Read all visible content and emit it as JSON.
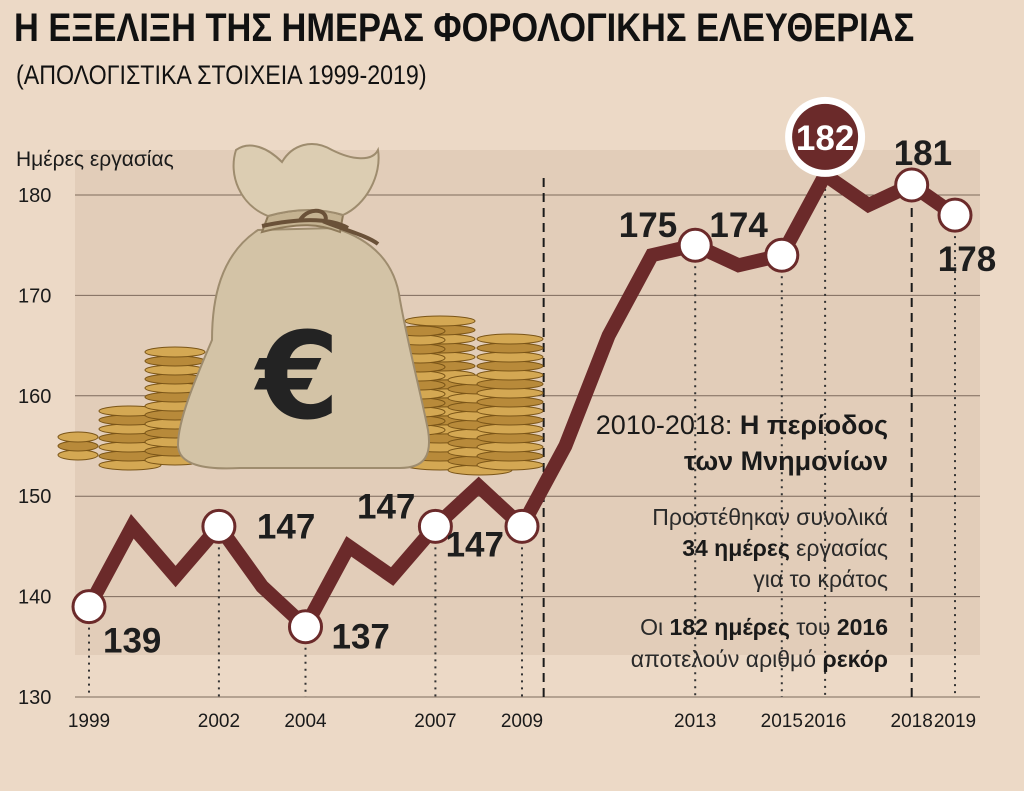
{
  "header": {
    "title": "Η ΕΞΕΛΙΞΗ ΤΗΣ ΗΜΕΡΑΣ ΦΟΡΟΛΟΓΙΚΗΣ ΕΛΕΥΘΕΡΙΑΣ",
    "subtitle": "(ΑΠΟΛΟΓΙΣΤΙΚΑ ΣΤΟΙΧΕΙΑ 1999-2019)"
  },
  "colors": {
    "background": "#ecd9c6",
    "plot_band": "#e2cdb9",
    "line": "#6b2a2a",
    "marker_fill": "#ffffff",
    "highlight_fill": "#6b2a2a"
  },
  "chart_data": {
    "type": "line",
    "ylabel": "Ημέρες εργασίας",
    "ylim": [
      130,
      185
    ],
    "yticks": [
      130,
      140,
      150,
      160,
      170,
      180
    ],
    "xlim": [
      1999,
      2019
    ],
    "xticks": [
      1999,
      2002,
      2004,
      2007,
      2009,
      2013,
      2015,
      2016,
      2018,
      2019
    ],
    "grid": true,
    "series": [
      {
        "x": [
          1999,
          2000,
          2001,
          2002,
          2003,
          2004,
          2005,
          2006,
          2007,
          2008,
          2009,
          2010,
          2011,
          2012,
          2013,
          2014,
          2015,
          2016,
          2017,
          2018,
          2019
        ],
        "values": [
          139,
          147,
          142,
          147,
          141,
          137,
          145,
          142,
          147,
          151,
          147,
          155,
          166,
          174,
          175,
          173,
          174,
          182,
          179,
          181,
          178
        ]
      }
    ],
    "labeled_points": [
      {
        "x": 1999,
        "value": 139,
        "label": "139"
      },
      {
        "x": 2002,
        "value": 147,
        "label": "147"
      },
      {
        "x": 2004,
        "value": 137,
        "label": "137"
      },
      {
        "x": 2007,
        "value": 147,
        "label": "147"
      },
      {
        "x": 2009,
        "value": 147,
        "label": "147"
      },
      {
        "x": 2013,
        "value": 175,
        "label": "175"
      },
      {
        "x": 2015,
        "value": 174,
        "label": "174"
      },
      {
        "x": 2016,
        "value": 182,
        "label": "182",
        "highlight": true
      },
      {
        "x": 2018,
        "value": 181,
        "label": "181"
      },
      {
        "x": 2019,
        "value": 178,
        "label": "178"
      }
    ],
    "period": {
      "from": 2010,
      "to": 2018,
      "title_prefix": "2010-2018: ",
      "title_bold_1": "Η περίοδος",
      "title_bold_2": "των Μνημονίων",
      "note1_line1": "Προστέθηκαν συνολικά",
      "note1_line2_bold": "34 ημέρες",
      "note1_line2": " εργασίας",
      "note1_line3": "για το κράτος",
      "note2_part1": "Οι ",
      "note2_bold1": "182 ημέρες",
      "note2_part2": " του ",
      "note2_bold2": "2016",
      "note2_line2": "αποτελούν αριθμό ",
      "note2_bold3": "ρεκόρ"
    },
    "illustration": "money-bag-with-euro-sign-and-coin-stacks",
    "illustration_symbol": "€"
  }
}
